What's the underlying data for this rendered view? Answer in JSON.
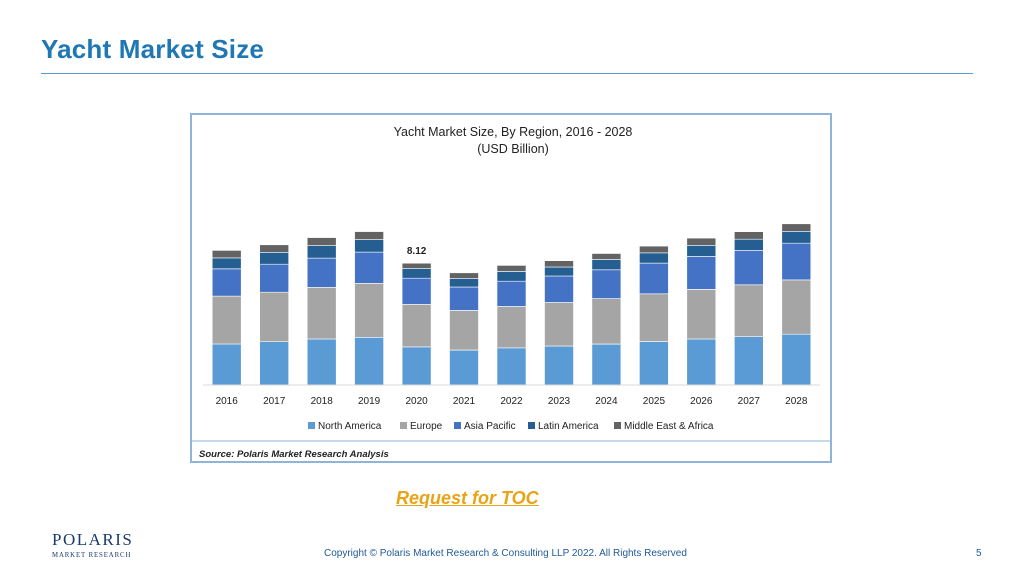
{
  "slide": {
    "title": "Yacht Market Size",
    "toc_link": "Request for TOC",
    "copyright": "Copyright © Polaris Market Research & Consulting LLP 2022. All Rights Reserved",
    "page_number": "5",
    "logo_name": "POLARIS",
    "logo_tagline": "MARKET RESEARCH"
  },
  "colors": {
    "title": "#1f77b4",
    "toc": "#e8a317",
    "north_america": "#5b9bd5",
    "europe": "#a5a5a5",
    "asia_pacific": "#4472c4",
    "latin_america": "#255e91",
    "middle_east_africa": "#636363"
  },
  "chart_data": {
    "type": "bar",
    "stacked": true,
    "title": "Yacht Market Size, By Region, 2016 - 2028",
    "subtitle": "(USD Billion)",
    "source": "Source: Polaris Market Research Analysis",
    "legend_position": "bottom",
    "categories": [
      "2016",
      "2017",
      "2018",
      "2019",
      "2020",
      "2021",
      "2022",
      "2023",
      "2024",
      "2025",
      "2026",
      "2027",
      "2028"
    ],
    "ylim": [
      0,
      14
    ],
    "annotations": [
      {
        "category": "2020",
        "text": "8.12"
      }
    ],
    "series": [
      {
        "name": "North America",
        "color": "#5b9bd5",
        "values": [
          2.74,
          2.89,
          3.07,
          3.18,
          2.54,
          2.33,
          2.48,
          2.6,
          2.73,
          2.9,
          3.07,
          3.22,
          3.39
        ]
      },
      {
        "name": "Europe",
        "color": "#a5a5a5",
        "values": [
          3.19,
          3.3,
          3.44,
          3.6,
          2.84,
          2.64,
          2.75,
          2.9,
          3.03,
          3.18,
          3.3,
          3.46,
          3.62
        ]
      },
      {
        "name": "Asia Pacific",
        "color": "#4472c4",
        "values": [
          1.81,
          1.87,
          1.95,
          2.08,
          1.74,
          1.56,
          1.69,
          1.77,
          1.92,
          2.04,
          2.2,
          2.3,
          2.45
        ]
      },
      {
        "name": "Latin America",
        "color": "#255e91",
        "values": [
          0.73,
          0.79,
          0.84,
          0.84,
          0.65,
          0.58,
          0.65,
          0.6,
          0.69,
          0.69,
          0.74,
          0.74,
          0.79
        ]
      },
      {
        "name": "Middle East & Africa",
        "color": "#636363",
        "values": [
          0.5,
          0.5,
          0.53,
          0.53,
          0.35,
          0.37,
          0.4,
          0.42,
          0.4,
          0.45,
          0.48,
          0.5,
          0.5
        ]
      }
    ]
  }
}
